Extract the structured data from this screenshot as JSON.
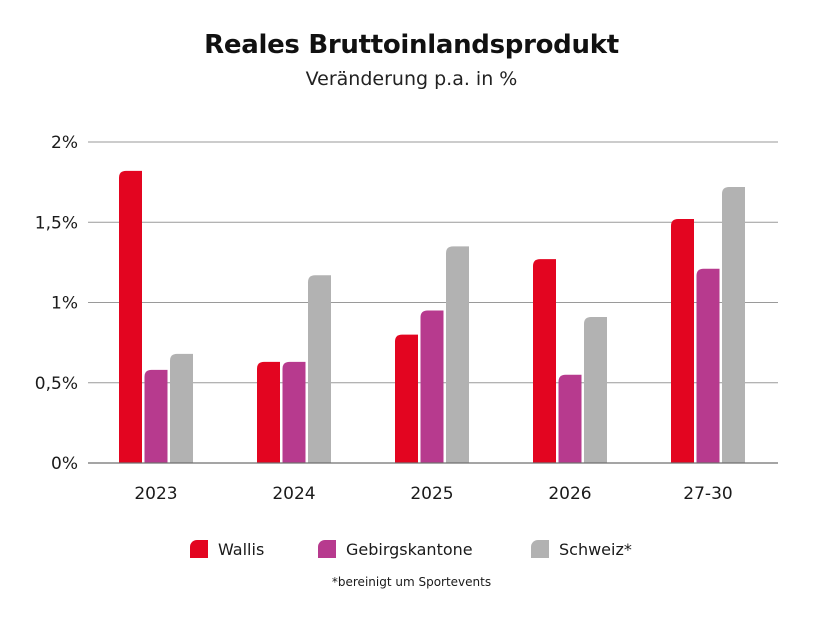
{
  "chart_data": {
    "type": "bar",
    "title": "Reales Bruttoinlandsprodukt",
    "subtitle": "Veränderung p.a. in %",
    "categories": [
      "2023",
      "2024",
      "2025",
      "2026",
      "27-30"
    ],
    "series": [
      {
        "name": "Wallis",
        "color": "#e30520",
        "values": [
          1.82,
          0.63,
          0.8,
          1.27,
          1.52
        ]
      },
      {
        "name": "Gebirgskantone",
        "color": "#b73a8e",
        "values": [
          0.58,
          0.63,
          0.95,
          0.55,
          1.21
        ]
      },
      {
        "name": "Schweiz*",
        "color": "#b2b2b2",
        "values": [
          0.68,
          1.17,
          1.35,
          0.91,
          1.72
        ]
      }
    ],
    "y_ticks": [
      {
        "value": 0,
        "label": "0%"
      },
      {
        "value": 0.5,
        "label": "0,5%"
      },
      {
        "value": 1,
        "label": "1%"
      },
      {
        "value": 1.5,
        "label": "1,5%"
      },
      {
        "value": 2,
        "label": "2%"
      }
    ],
    "ylim": [
      0,
      2
    ],
    "grid": true,
    "legend_position": "bottom",
    "footnote": "*bereinigt um Sportevents"
  }
}
